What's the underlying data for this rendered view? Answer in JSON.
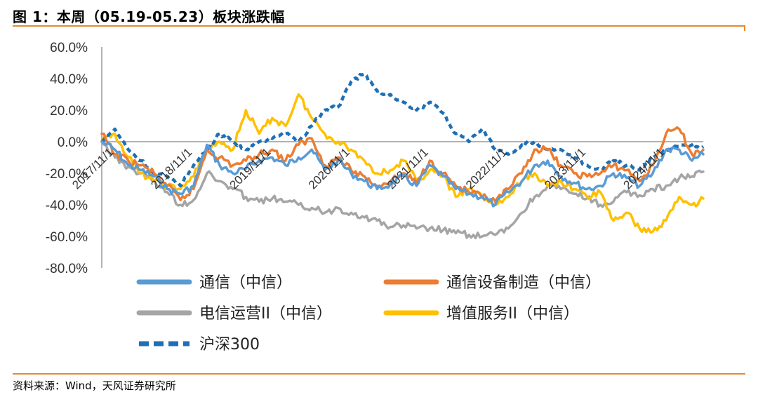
{
  "header": {
    "title": "图 1：本周（05.19-05.23）板块涨跌幅"
  },
  "footer": {
    "source": "资料来源：Wind，天风证券研究所"
  },
  "colors": {
    "accent": "#E8892E"
  },
  "chart_data": {
    "type": "line",
    "title": "",
    "xlabel": "",
    "ylabel": "",
    "ylim": [
      -0.8,
      0.6
    ],
    "yticks": [
      0.6,
      0.4,
      0.2,
      0.0,
      -0.2,
      -0.4,
      -0.6,
      -0.8
    ],
    "ytick_labels": [
      "60.0%",
      "40.0%",
      "20.0%",
      "0.0%",
      "-20.0%",
      "-40.0%",
      "-60.0%",
      "-80.0%"
    ],
    "xlim": [
      "2017-10-01",
      "2025-05-23"
    ],
    "xticks": [
      "2017-11-01",
      "2018-11-01",
      "2019-11-01",
      "2020-11-01",
      "2021-11-01",
      "2022-11-01",
      "2023-11-01",
      "2024-11-01"
    ],
    "xtick_labels": [
      "2017/11/1",
      "2018/11/1",
      "2019/11/1",
      "2020/11/1",
      "2021/11/1",
      "2022/11/1",
      "2023/11/1",
      "2024/11/1"
    ],
    "grid": false,
    "legend_position": "bottom",
    "x": [
      "2017-10-01",
      "2017-12-01",
      "2018-02-01",
      "2018-04-01",
      "2018-06-01",
      "2018-08-01",
      "2018-10-01",
      "2018-12-01",
      "2019-02-01",
      "2019-04-01",
      "2019-06-01",
      "2019-08-01",
      "2019-10-01",
      "2019-12-01",
      "2020-02-01",
      "2020-04-01",
      "2020-06-01",
      "2020-08-01",
      "2020-10-01",
      "2020-12-01",
      "2021-02-01",
      "2021-04-01",
      "2021-06-01",
      "2021-08-01",
      "2021-10-01",
      "2021-12-01",
      "2022-02-01",
      "2022-04-01",
      "2022-06-01",
      "2022-08-01",
      "2022-10-01",
      "2022-12-01",
      "2023-02-01",
      "2023-04-01",
      "2023-06-01",
      "2023-08-01",
      "2023-10-01",
      "2023-12-01",
      "2024-02-01",
      "2024-04-01",
      "2024-06-01",
      "2024-08-01",
      "2024-10-01",
      "2024-12-01",
      "2025-02-01",
      "2025-04-01",
      "2025-05-23"
    ],
    "series": [
      {
        "name": "通信（中信）",
        "color": "#5B9BD5",
        "style": "solid",
        "values": [
          0.0,
          -0.05,
          -0.15,
          -0.18,
          -0.22,
          -0.3,
          -0.33,
          -0.28,
          -0.02,
          -0.15,
          -0.2,
          -0.17,
          -0.12,
          -0.1,
          -0.15,
          -0.1,
          -0.05,
          -0.18,
          -0.12,
          -0.2,
          -0.25,
          -0.3,
          -0.27,
          -0.22,
          -0.28,
          -0.15,
          -0.22,
          -0.3,
          -0.33,
          -0.35,
          -0.4,
          -0.32,
          -0.25,
          -0.15,
          -0.12,
          -0.22,
          -0.26,
          -0.3,
          -0.28,
          -0.2,
          -0.23,
          -0.28,
          -0.2,
          -0.05,
          -0.05,
          -0.12,
          -0.08
        ]
      },
      {
        "name": "通信设备制造（中信）",
        "color": "#ED7D31",
        "style": "solid",
        "values": [
          0.05,
          -0.08,
          -0.12,
          -0.15,
          -0.2,
          -0.28,
          -0.37,
          -0.3,
          -0.05,
          -0.1,
          -0.15,
          -0.12,
          -0.08,
          -0.05,
          -0.12,
          -0.02,
          0.02,
          -0.15,
          -0.1,
          -0.18,
          -0.22,
          -0.28,
          -0.25,
          -0.2,
          -0.26,
          -0.12,
          -0.2,
          -0.28,
          -0.32,
          -0.35,
          -0.38,
          -0.3,
          -0.2,
          -0.05,
          -0.05,
          -0.15,
          -0.2,
          -0.22,
          -0.2,
          -0.15,
          -0.18,
          -0.25,
          -0.15,
          0.05,
          0.08,
          -0.08,
          -0.05
        ]
      },
      {
        "name": "电信运营II（中信）",
        "color": "#A5A5A5",
        "style": "solid",
        "values": [
          0.0,
          -0.1,
          -0.16,
          -0.2,
          -0.25,
          -0.32,
          -0.4,
          -0.37,
          -0.2,
          -0.25,
          -0.3,
          -0.35,
          -0.38,
          -0.36,
          -0.38,
          -0.4,
          -0.42,
          -0.45,
          -0.42,
          -0.45,
          -0.48,
          -0.5,
          -0.54,
          -0.53,
          -0.55,
          -0.55,
          -0.56,
          -0.58,
          -0.59,
          -0.6,
          -0.59,
          -0.55,
          -0.45,
          -0.35,
          -0.28,
          -0.3,
          -0.33,
          -0.36,
          -0.4,
          -0.38,
          -0.32,
          -0.34,
          -0.3,
          -0.28,
          -0.23,
          -0.22,
          -0.19
        ]
      },
      {
        "name": "增值服务II（中信）",
        "color": "#FFC000",
        "style": "solid",
        "values": [
          0.0,
          0.05,
          -0.1,
          -0.2,
          -0.25,
          -0.28,
          -0.3,
          -0.22,
          -0.05,
          0.0,
          -0.05,
          0.2,
          0.05,
          0.15,
          0.1,
          0.3,
          0.15,
          0.05,
          0.0,
          -0.05,
          -0.12,
          -0.2,
          -0.18,
          -0.12,
          -0.25,
          -0.18,
          -0.22,
          -0.35,
          -0.3,
          -0.35,
          -0.4,
          -0.35,
          -0.25,
          -0.2,
          -0.28,
          -0.25,
          -0.3,
          -0.35,
          -0.32,
          -0.5,
          -0.45,
          -0.55,
          -0.57,
          -0.5,
          -0.35,
          -0.4,
          -0.36
        ]
      },
      {
        "name": "沪深300",
        "color": "#1F6FB5",
        "style": "dashed",
        "values": [
          0.0,
          0.08,
          -0.05,
          -0.12,
          -0.2,
          -0.22,
          -0.28,
          -0.15,
          -0.05,
          0.05,
          0.0,
          -0.05,
          0.0,
          0.02,
          0.05,
          0.0,
          0.1,
          0.2,
          0.22,
          0.38,
          0.43,
          0.32,
          0.3,
          0.25,
          0.2,
          0.25,
          0.18,
          0.05,
          0.0,
          0.08,
          -0.05,
          -0.08,
          -0.02,
          0.0,
          -0.05,
          -0.05,
          -0.1,
          -0.15,
          -0.18,
          -0.12,
          -0.15,
          -0.18,
          -0.1,
          -0.05,
          -0.03,
          -0.02,
          -0.03
        ]
      }
    ]
  }
}
